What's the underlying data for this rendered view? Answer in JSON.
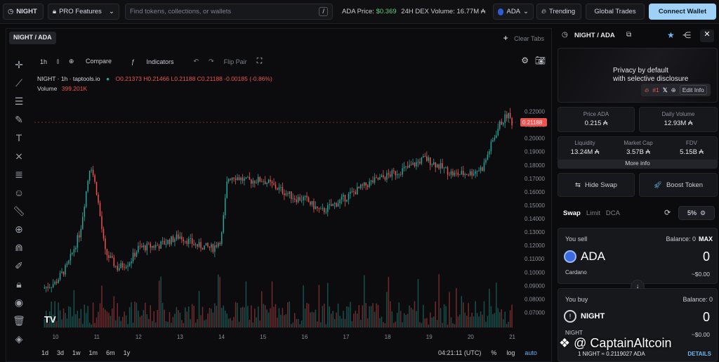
{
  "topbar": {
    "pair": "NIGHT",
    "pro_label": "PRO Features",
    "search_placeholder": "Find tokens, collections, or wallets",
    "search_shortcut": "/",
    "ada_price_label": "ADA Price:",
    "ada_price_value": "$0.369",
    "dex_volume_label": "24H DEX Volume:",
    "dex_volume_value": "16.77M ₳",
    "currency": "ADA",
    "trending": "Trending",
    "global_trades": "Global Trades",
    "connect_wallet": "Connect Wallet"
  },
  "chart_tab": {
    "label": "NIGHT / ADA",
    "clear_tabs": "Clear Tabs"
  },
  "chart_toolbar": {
    "interval": "1h",
    "compare": "Compare",
    "indicators": "Indicators",
    "flip_pair": "Flip Pair"
  },
  "chart_legend": {
    "title": "NIGHT · 1h · taptools.io",
    "open": "O0.21373",
    "high": "H0.21466",
    "low": "L0.21188",
    "close": "C0.21188",
    "change": "-0.00185 (-0.86%)",
    "volume_label": "Volume",
    "volume_value": "399.201K",
    "last_price_tag": "0.21188"
  },
  "chart_footer": {
    "ranges": [
      "1d",
      "3d",
      "1w",
      "1m",
      "6m",
      "1y"
    ],
    "time": "04:21:11 (UTC)",
    "percent": "%",
    "log": "log",
    "auto": "auto"
  },
  "chart_data": {
    "type": "candlestick",
    "x_tick_labels": [
      "10",
      "11",
      "12",
      "13",
      "14",
      "15",
      "16",
      "17",
      "18",
      "19",
      "20",
      "21"
    ],
    "y_tick_labels": [
      "0.22000",
      "0.21000",
      "0.20000",
      "0.19000",
      "0.18000",
      "0.17000",
      "0.16000",
      "0.15000",
      "0.14000",
      "0.13000",
      "0.12000",
      "0.11000",
      "0.10000",
      "0.09000",
      "0.08000",
      "0.07000"
    ],
    "ylim": [
      0.065,
      0.225
    ],
    "approx_close_path": [
      {
        "x": 9.7,
        "y": 0.088
      },
      {
        "x": 10.0,
        "y": 0.092
      },
      {
        "x": 10.3,
        "y": 0.105
      },
      {
        "x": 10.6,
        "y": 0.13
      },
      {
        "x": 10.85,
        "y": 0.182
      },
      {
        "x": 11.0,
        "y": 0.16
      },
      {
        "x": 11.2,
        "y": 0.115
      },
      {
        "x": 11.5,
        "y": 0.103
      },
      {
        "x": 11.8,
        "y": 0.108
      },
      {
        "x": 12.0,
        "y": 0.118
      },
      {
        "x": 12.5,
        "y": 0.12
      },
      {
        "x": 13.0,
        "y": 0.127
      },
      {
        "x": 13.4,
        "y": 0.12
      },
      {
        "x": 13.8,
        "y": 0.118
      },
      {
        "x": 14.0,
        "y": 0.125
      },
      {
        "x": 14.15,
        "y": 0.17
      },
      {
        "x": 14.3,
        "y": 0.172
      },
      {
        "x": 14.6,
        "y": 0.168
      },
      {
        "x": 15.0,
        "y": 0.169
      },
      {
        "x": 15.4,
        "y": 0.162
      },
      {
        "x": 15.8,
        "y": 0.155
      },
      {
        "x": 16.0,
        "y": 0.155
      },
      {
        "x": 16.4,
        "y": 0.145
      },
      {
        "x": 16.8,
        "y": 0.152
      },
      {
        "x": 17.2,
        "y": 0.16
      },
      {
        "x": 17.6,
        "y": 0.167
      },
      {
        "x": 18.0,
        "y": 0.172
      },
      {
        "x": 18.5,
        "y": 0.178
      },
      {
        "x": 18.9,
        "y": 0.185
      },
      {
        "x": 19.2,
        "y": 0.18
      },
      {
        "x": 19.6,
        "y": 0.173
      },
      {
        "x": 20.0,
        "y": 0.174
      },
      {
        "x": 20.3,
        "y": 0.178
      },
      {
        "x": 20.5,
        "y": 0.195
      },
      {
        "x": 20.7,
        "y": 0.21
      },
      {
        "x": 20.9,
        "y": 0.218
      },
      {
        "x": 21.0,
        "y": 0.212
      }
    ]
  },
  "token_panel": {
    "pair": "NIGHT / ADA",
    "banner_line1": "Privacy by default",
    "banner_line2": "with selective disclosure",
    "rank": "#1",
    "edit_info": "Edit Info",
    "price_label": "Price ADA",
    "price_value": "0.215 ₳",
    "daily_volume_label": "Daily Volume",
    "daily_volume_value": "12.93M ₳",
    "liquidity_label": "Liquidity",
    "liquidity_value": "13.24M ₳",
    "mcap_label": "Market Cap",
    "mcap_value": "3.57B ₳",
    "fdv_label": "FDV",
    "fdv_value": "5.15B ₳",
    "more_info": "More info",
    "hide_swap": "Hide Swap",
    "boost_token": "Boost Token"
  },
  "swap": {
    "tabs": [
      "Swap",
      "Limit",
      "DCA"
    ],
    "slippage": "5%",
    "sell_label": "You sell",
    "sell_balance": "Balance: 0",
    "max": "MAX",
    "sell_token": "ADA",
    "sell_amount": "0",
    "sell_chain": "Cardano",
    "sell_usd": "~$0.00",
    "buy_label": "You buy",
    "buy_balance": "Balance: 0",
    "buy_token": "NIGHT",
    "buy_amount": "0",
    "buy_chain": "NIGHT",
    "buy_usd": "~$0.00",
    "rate": "1 NIGHT ≈ 0.2119027 ADA",
    "details": "DETAILS"
  },
  "watermark": "@ CaptainAltcoin",
  "colors": {
    "up": "#26a69a",
    "down": "#ef5350",
    "accent": "#9fd0f5"
  }
}
